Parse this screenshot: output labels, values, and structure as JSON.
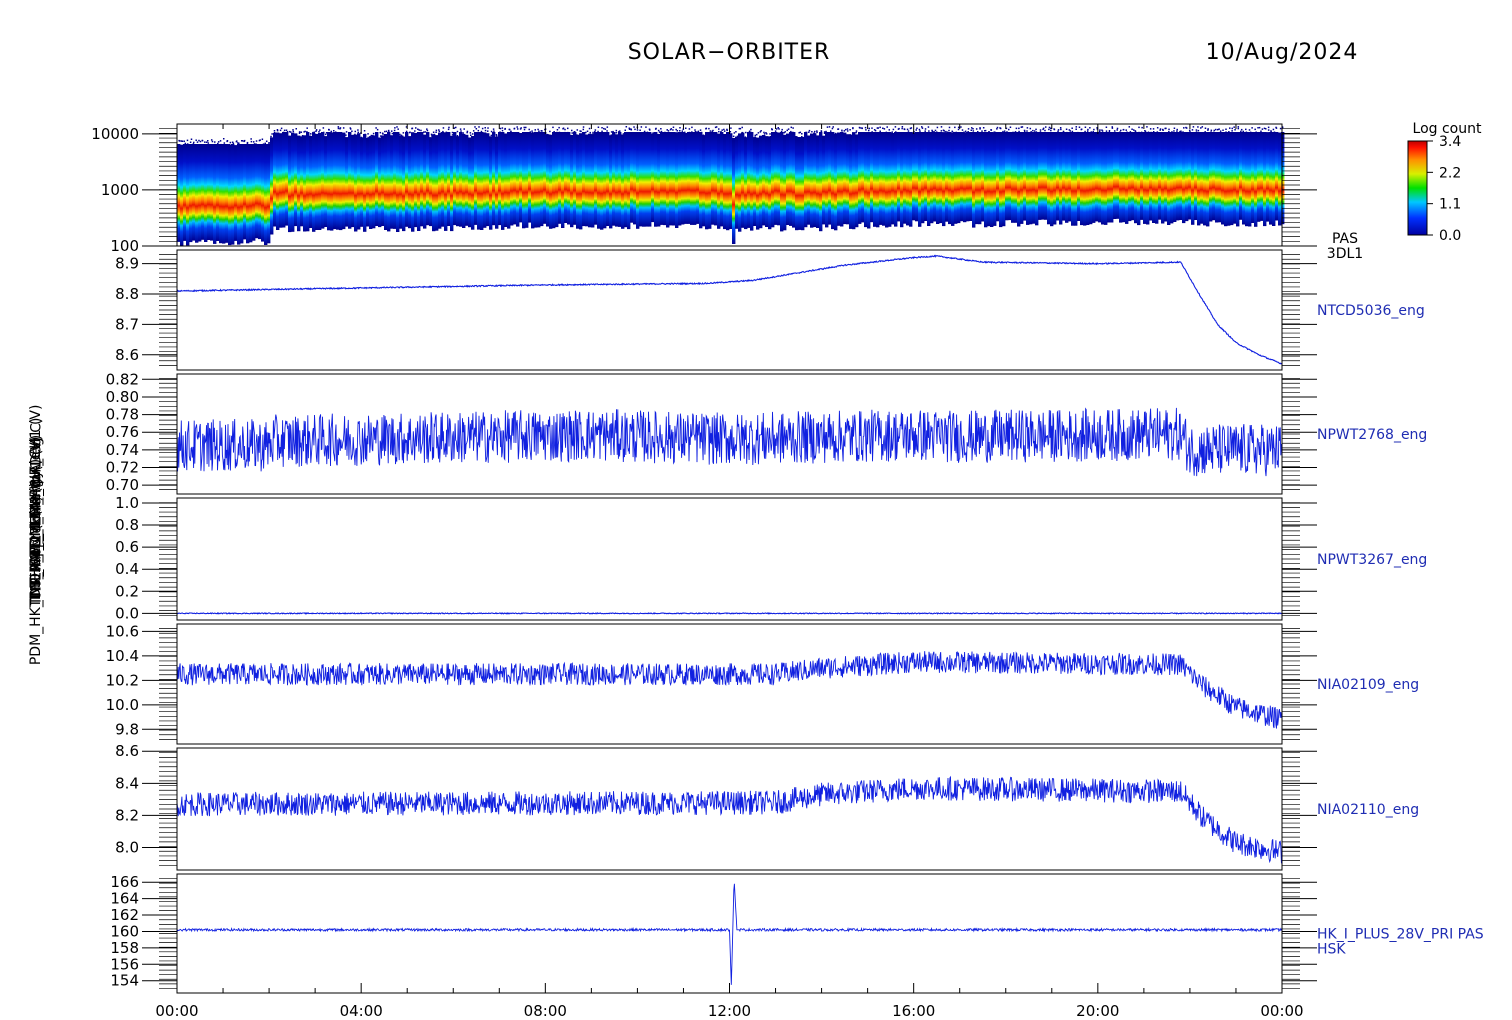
{
  "header": {
    "mission": "SOLAR−ORBITER",
    "date": "10/Aug/2024"
  },
  "y_axis_labels": [
    "Energy (eV)",
    "Approx Temp (Deg C)",
    "TDS_ANT_MUX_PWR_CH1 (V)",
    "TNR_ANT_TEMP_CH1 (V)",
    "THERM_1 (mA)",
    "THERM_2 (mA)",
    "PDM_HK_IMON_PDM_HK (mA)"
  ],
  "colorbar": {
    "label": "Log count",
    "ticks": [
      "3.4",
      "2.2",
      "1.1",
      "0.0"
    ]
  },
  "x_ticks": [
    "00:00",
    "04:00",
    "08:00",
    "12:00",
    "16:00",
    "20:00",
    "00:00"
  ],
  "chart_data": [
    {
      "type": "heatmap",
      "id": "pas-3dl1",
      "side_label_lines": [
        "PAS",
        "3DL1"
      ],
      "x_range_hours": [
        0,
        24
      ],
      "yscale": "log",
      "ylim": [
        100,
        15000
      ],
      "y_ticks": [
        "10000",
        "1000",
        "100"
      ],
      "y_tick_values": [
        10000,
        1000,
        100
      ],
      "colorbar_range": [
        0.0,
        3.4
      ],
      "peak_energy_eV": {
        "x_hours": [
          0,
          1,
          2,
          2.1,
          4,
          7,
          7.3,
          9,
          11,
          12,
          12.1,
          14,
          16,
          17,
          19,
          21,
          22,
          24
        ],
        "values": [
          750,
          780,
          800,
          1050,
          1050,
          1080,
          1200,
          1150,
          1250,
          1100,
          1050,
          1100,
          1300,
          1250,
          1350,
          1400,
          1350,
          1300
        ]
      }
    },
    {
      "type": "line",
      "id": "ntcd5036",
      "side_label": "NTCD5036_eng",
      "ylim": [
        8.55,
        8.945
      ],
      "y_ticks": [
        "8.9",
        "8.8",
        "8.7",
        "8.6"
      ],
      "y_tick_values": [
        8.9,
        8.8,
        8.7,
        8.6
      ],
      "noise": 0.002,
      "x_hours": [
        0,
        4,
        8,
        11.5,
        12.5,
        14.5,
        16,
        16.5,
        17.5,
        20,
        21.8,
        22.2,
        22.6,
        23,
        23.5,
        24
      ],
      "values": [
        8.81,
        8.82,
        8.83,
        8.835,
        8.845,
        8.895,
        8.92,
        8.925,
        8.905,
        8.9,
        8.905,
        8.8,
        8.7,
        8.64,
        8.6,
        8.57
      ]
    },
    {
      "type": "line",
      "id": "npwt2768",
      "side_label": "NPWT2768_eng",
      "ylim": [
        0.69,
        0.826
      ],
      "y_ticks": [
        "0.82",
        "0.80",
        "0.78",
        "0.76",
        "0.74",
        "0.72",
        "0.70"
      ],
      "y_tick_values": [
        0.82,
        0.8,
        0.78,
        0.76,
        0.74,
        0.72,
        0.7
      ],
      "noise": 0.03,
      "x_hours": [
        0,
        2,
        2.1,
        7,
        9,
        12,
        16,
        17,
        21.8,
        22,
        24
      ],
      "values": [
        0.745,
        0.745,
        0.75,
        0.755,
        0.757,
        0.752,
        0.757,
        0.755,
        0.758,
        0.74,
        0.74
      ]
    },
    {
      "type": "line",
      "id": "npwt3267",
      "side_label": "NPWT3267_eng",
      "ylim": [
        -0.06,
        1.045
      ],
      "y_ticks": [
        "1.0",
        "0.8",
        "0.6",
        "0.4",
        "0.2",
        "0.0"
      ],
      "y_tick_values": [
        1.0,
        0.8,
        0.6,
        0.4,
        0.2,
        0.0
      ],
      "noise": 0.004,
      "x_hours": [
        0,
        24
      ],
      "values": [
        0.0,
        0.0
      ]
    },
    {
      "type": "line",
      "id": "nia02109",
      "side_label": "NIA02109_eng",
      "ylim": [
        9.68,
        10.66
      ],
      "y_ticks": [
        "10.6",
        "10.4",
        "10.2",
        "10.0",
        "9.8"
      ],
      "y_tick_values": [
        10.6,
        10.4,
        10.2,
        10.0,
        9.8
      ],
      "noise": 0.09,
      "x_hours": [
        0,
        13,
        14,
        16,
        21.8,
        22.3,
        23,
        24
      ],
      "values": [
        10.25,
        10.25,
        10.3,
        10.35,
        10.33,
        10.15,
        9.98,
        9.88
      ]
    },
    {
      "type": "line",
      "id": "nia02110",
      "side_label": "NIA02110_eng",
      "ylim": [
        7.86,
        8.62
      ],
      "y_ticks": [
        "8.6",
        "8.4",
        "8.2",
        "8.0"
      ],
      "y_tick_values": [
        8.6,
        8.4,
        8.2,
        8.0
      ],
      "noise": 0.075,
      "x_hours": [
        0,
        13,
        14,
        16,
        21.8,
        22.3,
        23,
        24
      ],
      "values": [
        8.27,
        8.28,
        8.33,
        8.37,
        8.35,
        8.18,
        8.03,
        7.97
      ]
    },
    {
      "type": "line",
      "id": "hk-i-plus-28v",
      "side_label_lines": [
        "HK_I_PLUS_28V_PRI PAS",
        "HSK"
      ],
      "ylim": [
        152.5,
        167
      ],
      "y_ticks": [
        "166",
        "164",
        "162",
        "160",
        "158",
        "156",
        "154"
      ],
      "y_tick_values": [
        166,
        164,
        162,
        160,
        158,
        156,
        154
      ],
      "noise": 0.15,
      "x_hours": [
        0,
        24
      ],
      "values": [
        160.2,
        160.2
      ],
      "spike": {
        "x_hours": [
          12.0,
          12.04,
          12.1,
          12.16,
          12.22
        ],
        "values": [
          160.2,
          153.5,
          166.5,
          160.2,
          160.2
        ]
      }
    }
  ]
}
